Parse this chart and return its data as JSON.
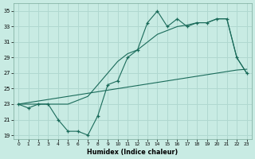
{
  "xlabel": "Humidex (Indice chaleur)",
  "background_color": "#c8ebe3",
  "grid_color": "#b0d8d0",
  "line_color": "#1a6b5a",
  "xlim": [
    -0.5,
    23.5
  ],
  "ylim": [
    18.5,
    36
  ],
  "xticks": [
    0,
    1,
    2,
    3,
    4,
    5,
    6,
    7,
    8,
    9,
    10,
    11,
    12,
    13,
    14,
    15,
    16,
    17,
    18,
    19,
    20,
    21,
    22,
    23
  ],
  "yticks": [
    19,
    21,
    23,
    25,
    27,
    29,
    31,
    33,
    35
  ],
  "humidex_values": [
    23,
    22.5,
    23,
    23,
    21,
    19.5,
    19.5,
    19,
    21.5,
    25.5,
    26,
    29,
    30,
    33.5,
    35,
    33,
    34,
    33,
    33.5,
    33.5,
    34,
    34,
    29,
    27
  ],
  "trend_line": [
    23,
    23.2,
    23.4,
    23.6,
    23.8,
    24.0,
    24.2,
    24.4,
    24.6,
    24.8,
    25.0,
    25.2,
    25.4,
    25.6,
    25.8,
    26.0,
    26.2,
    26.4,
    26.6,
    26.8,
    27.0,
    27.2,
    27.4,
    27.5
  ],
  "smooth_line": [
    23,
    23,
    23,
    23,
    23,
    23,
    23.5,
    24,
    25.5,
    27,
    28.5,
    29.5,
    30,
    31,
    32,
    32.5,
    33,
    33.2,
    33.5,
    33.5,
    34,
    34,
    29,
    27
  ]
}
